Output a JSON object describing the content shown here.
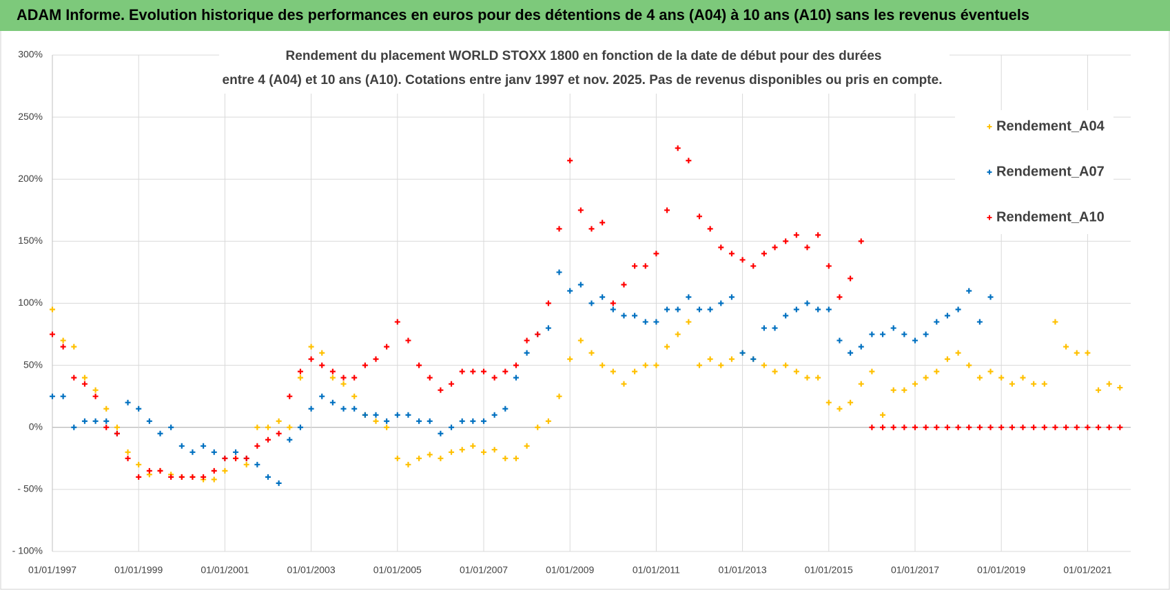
{
  "chart_data": {
    "type": "scatter",
    "title": "ADAM Informe. Evolution historique des performances en euros pour des détentions de 4 ans (A04) à 10 ans (A10) sans les revenus éventuels",
    "subtitle": [
      "Rendement du placement WORLD STOXX 1800  en fonction de la date de début pour des durées",
      "entre 4 (A04) et 10 ans (A10).  Cotations entre janv 1997  et  nov. 2025.  Pas de revenus disponibles ou pris en compte."
    ],
    "x": [
      "1997-01-01",
      "1997-04-01",
      "1997-07-01",
      "1997-10-01",
      "1998-01-01",
      "1998-04-01",
      "1998-07-01",
      "1998-10-01",
      "1999-01-01",
      "1999-04-01",
      "1999-07-01",
      "1999-10-01",
      "2000-01-01",
      "2000-04-01",
      "2000-07-01",
      "2000-10-01",
      "2001-01-01",
      "2001-04-01",
      "2001-07-01",
      "2001-10-01",
      "2002-01-01",
      "2002-04-01",
      "2002-07-01",
      "2002-10-01",
      "2003-01-01",
      "2003-04-01",
      "2003-07-01",
      "2003-10-01",
      "2004-01-01",
      "2004-04-01",
      "2004-07-01",
      "2004-10-01",
      "2005-01-01",
      "2005-04-01",
      "2005-07-01",
      "2005-10-01",
      "2006-01-01",
      "2006-04-01",
      "2006-07-01",
      "2006-10-01",
      "2007-01-01",
      "2007-04-01",
      "2007-07-01",
      "2007-10-01",
      "2008-01-01",
      "2008-04-01",
      "2008-07-01",
      "2008-10-01",
      "2009-01-01",
      "2009-04-01",
      "2009-07-01",
      "2009-10-01",
      "2010-01-01",
      "2010-04-01",
      "2010-07-01",
      "2010-10-01",
      "2011-01-01",
      "2011-04-01",
      "2011-07-01",
      "2011-10-01",
      "2012-01-01",
      "2012-04-01",
      "2012-07-01",
      "2012-10-01",
      "2013-01-01",
      "2013-04-01",
      "2013-07-01",
      "2013-10-01",
      "2014-01-01",
      "2014-04-01",
      "2014-07-01",
      "2014-10-01",
      "2015-01-01",
      "2015-04-01",
      "2015-07-01",
      "2015-10-01",
      "2016-01-01",
      "2016-04-01",
      "2016-07-01",
      "2016-10-01",
      "2017-01-01",
      "2017-04-01",
      "2017-07-01",
      "2017-10-01",
      "2018-01-01",
      "2018-04-01",
      "2018-07-01",
      "2018-10-01",
      "2019-01-01",
      "2019-04-01",
      "2019-07-01",
      "2019-10-01",
      "2020-01-01",
      "2020-04-01",
      "2020-07-01",
      "2020-10-01",
      "2021-01-01",
      "2021-04-01",
      "2021-07-01",
      "2021-10-01"
    ],
    "series": [
      {
        "name": "Rendement_A04",
        "color": "#ffc000",
        "values": [
          95,
          70,
          65,
          40,
          30,
          15,
          0,
          -20,
          -30,
          -38,
          -35,
          -38,
          -40,
          -40,
          -42,
          -42,
          -35,
          -25,
          -30,
          0,
          0,
          5,
          0,
          40,
          65,
          60,
          40,
          35,
          25,
          10,
          5,
          0,
          -25,
          -30,
          -25,
          -22,
          -25,
          -20,
          -18,
          -15,
          -20,
          -18,
          -25,
          -25,
          -15,
          0,
          5,
          25,
          55,
          70,
          60,
          50,
          45,
          35,
          45,
          50,
          50,
          65,
          75,
          85,
          50,
          55,
          50,
          55,
          60,
          55,
          50,
          45,
          50,
          45,
          40,
          40,
          20,
          15,
          20,
          35,
          45,
          10,
          30,
          30,
          35,
          40,
          45,
          55,
          60,
          50,
          40,
          45,
          40,
          35,
          40,
          35,
          35,
          85,
          65,
          60,
          60,
          30,
          35,
          32
        ]
      },
      {
        "name": "Rendement_A07",
        "color": "#0070c0",
        "values": [
          25,
          25,
          0,
          5,
          5,
          5,
          -5,
          20,
          15,
          5,
          -5,
          0,
          -15,
          -20,
          -15,
          -20,
          -25,
          -20,
          -25,
          -30,
          -40,
          -45,
          -10,
          0,
          15,
          25,
          20,
          15,
          15,
          10,
          10,
          5,
          10,
          10,
          5,
          5,
          -5,
          0,
          5,
          5,
          5,
          10,
          15,
          40,
          60,
          75,
          80,
          125,
          110,
          115,
          100,
          105,
          95,
          90,
          90,
          85,
          85,
          95,
          95,
          105,
          95,
          95,
          100,
          105,
          60,
          55,
          80,
          80,
          90,
          95,
          100,
          95,
          95,
          70,
          60,
          65,
          75,
          75,
          80,
          75,
          70,
          75,
          85,
          90,
          95,
          110,
          85,
          105,
          null,
          null,
          null,
          null,
          null,
          null,
          null,
          null,
          null,
          null,
          null,
          null
        ]
      },
      {
        "name": "Rendement_A10",
        "color": "#ff0000",
        "values": [
          75,
          65,
          40,
          35,
          25,
          0,
          -5,
          -25,
          -40,
          -35,
          -35,
          -40,
          -40,
          -40,
          -40,
          -35,
          -25,
          -25,
          -25,
          -15,
          -10,
          -5,
          25,
          45,
          55,
          50,
          45,
          40,
          40,
          50,
          55,
          65,
          85,
          70,
          50,
          40,
          30,
          35,
          45,
          45,
          45,
          40,
          45,
          50,
          70,
          75,
          100,
          160,
          215,
          175,
          160,
          165,
          100,
          115,
          130,
          130,
          140,
          175,
          225,
          215,
          170,
          160,
          145,
          140,
          135,
          130,
          140,
          145,
          150,
          155,
          145,
          155,
          130,
          105,
          120,
          150,
          0,
          0,
          0,
          0,
          0,
          0,
          0,
          0,
          0,
          0,
          0,
          0,
          0,
          0,
          0,
          0,
          0,
          0,
          0,
          0,
          0,
          0,
          0,
          0
        ]
      }
    ],
    "xlim": [
      "1997-01-01",
      "2022-01-01"
    ],
    "xticks": [
      {
        "value": "1997-01-01",
        "label": "01/01/1997"
      },
      {
        "value": "1999-01-01",
        "label": "01/01/1999"
      },
      {
        "value": "2001-01-01",
        "label": "01/01/2001"
      },
      {
        "value": "2003-01-01",
        "label": "01/01/2003"
      },
      {
        "value": "2005-01-01",
        "label": "01/01/2005"
      },
      {
        "value": "2007-01-01",
        "label": "01/01/2007"
      },
      {
        "value": "2009-01-01",
        "label": "01/01/2009"
      },
      {
        "value": "2011-01-01",
        "label": "01/01/2011"
      },
      {
        "value": "2013-01-01",
        "label": "01/01/2013"
      },
      {
        "value": "2015-01-01",
        "label": "01/01/2015"
      },
      {
        "value": "2017-01-01",
        "label": "01/01/2017"
      },
      {
        "value": "2019-01-01",
        "label": "01/01/2019"
      },
      {
        "value": "2021-01-01",
        "label": "01/01/2021"
      }
    ],
    "ylim": [
      -100,
      300
    ],
    "yticks": [
      {
        "value": -100,
        "label": "- 100%"
      },
      {
        "value": -50,
        "label": "- 50%"
      },
      {
        "value": 0,
        "label": "0%"
      },
      {
        "value": 50,
        "label": "50%"
      },
      {
        "value": 100,
        "label": "100%"
      },
      {
        "value": 150,
        "label": "150%"
      },
      {
        "value": 200,
        "label": "200%"
      },
      {
        "value": 250,
        "label": "250%"
      },
      {
        "value": 300,
        "label": "300%"
      }
    ],
    "grid": true,
    "legend": "right"
  }
}
